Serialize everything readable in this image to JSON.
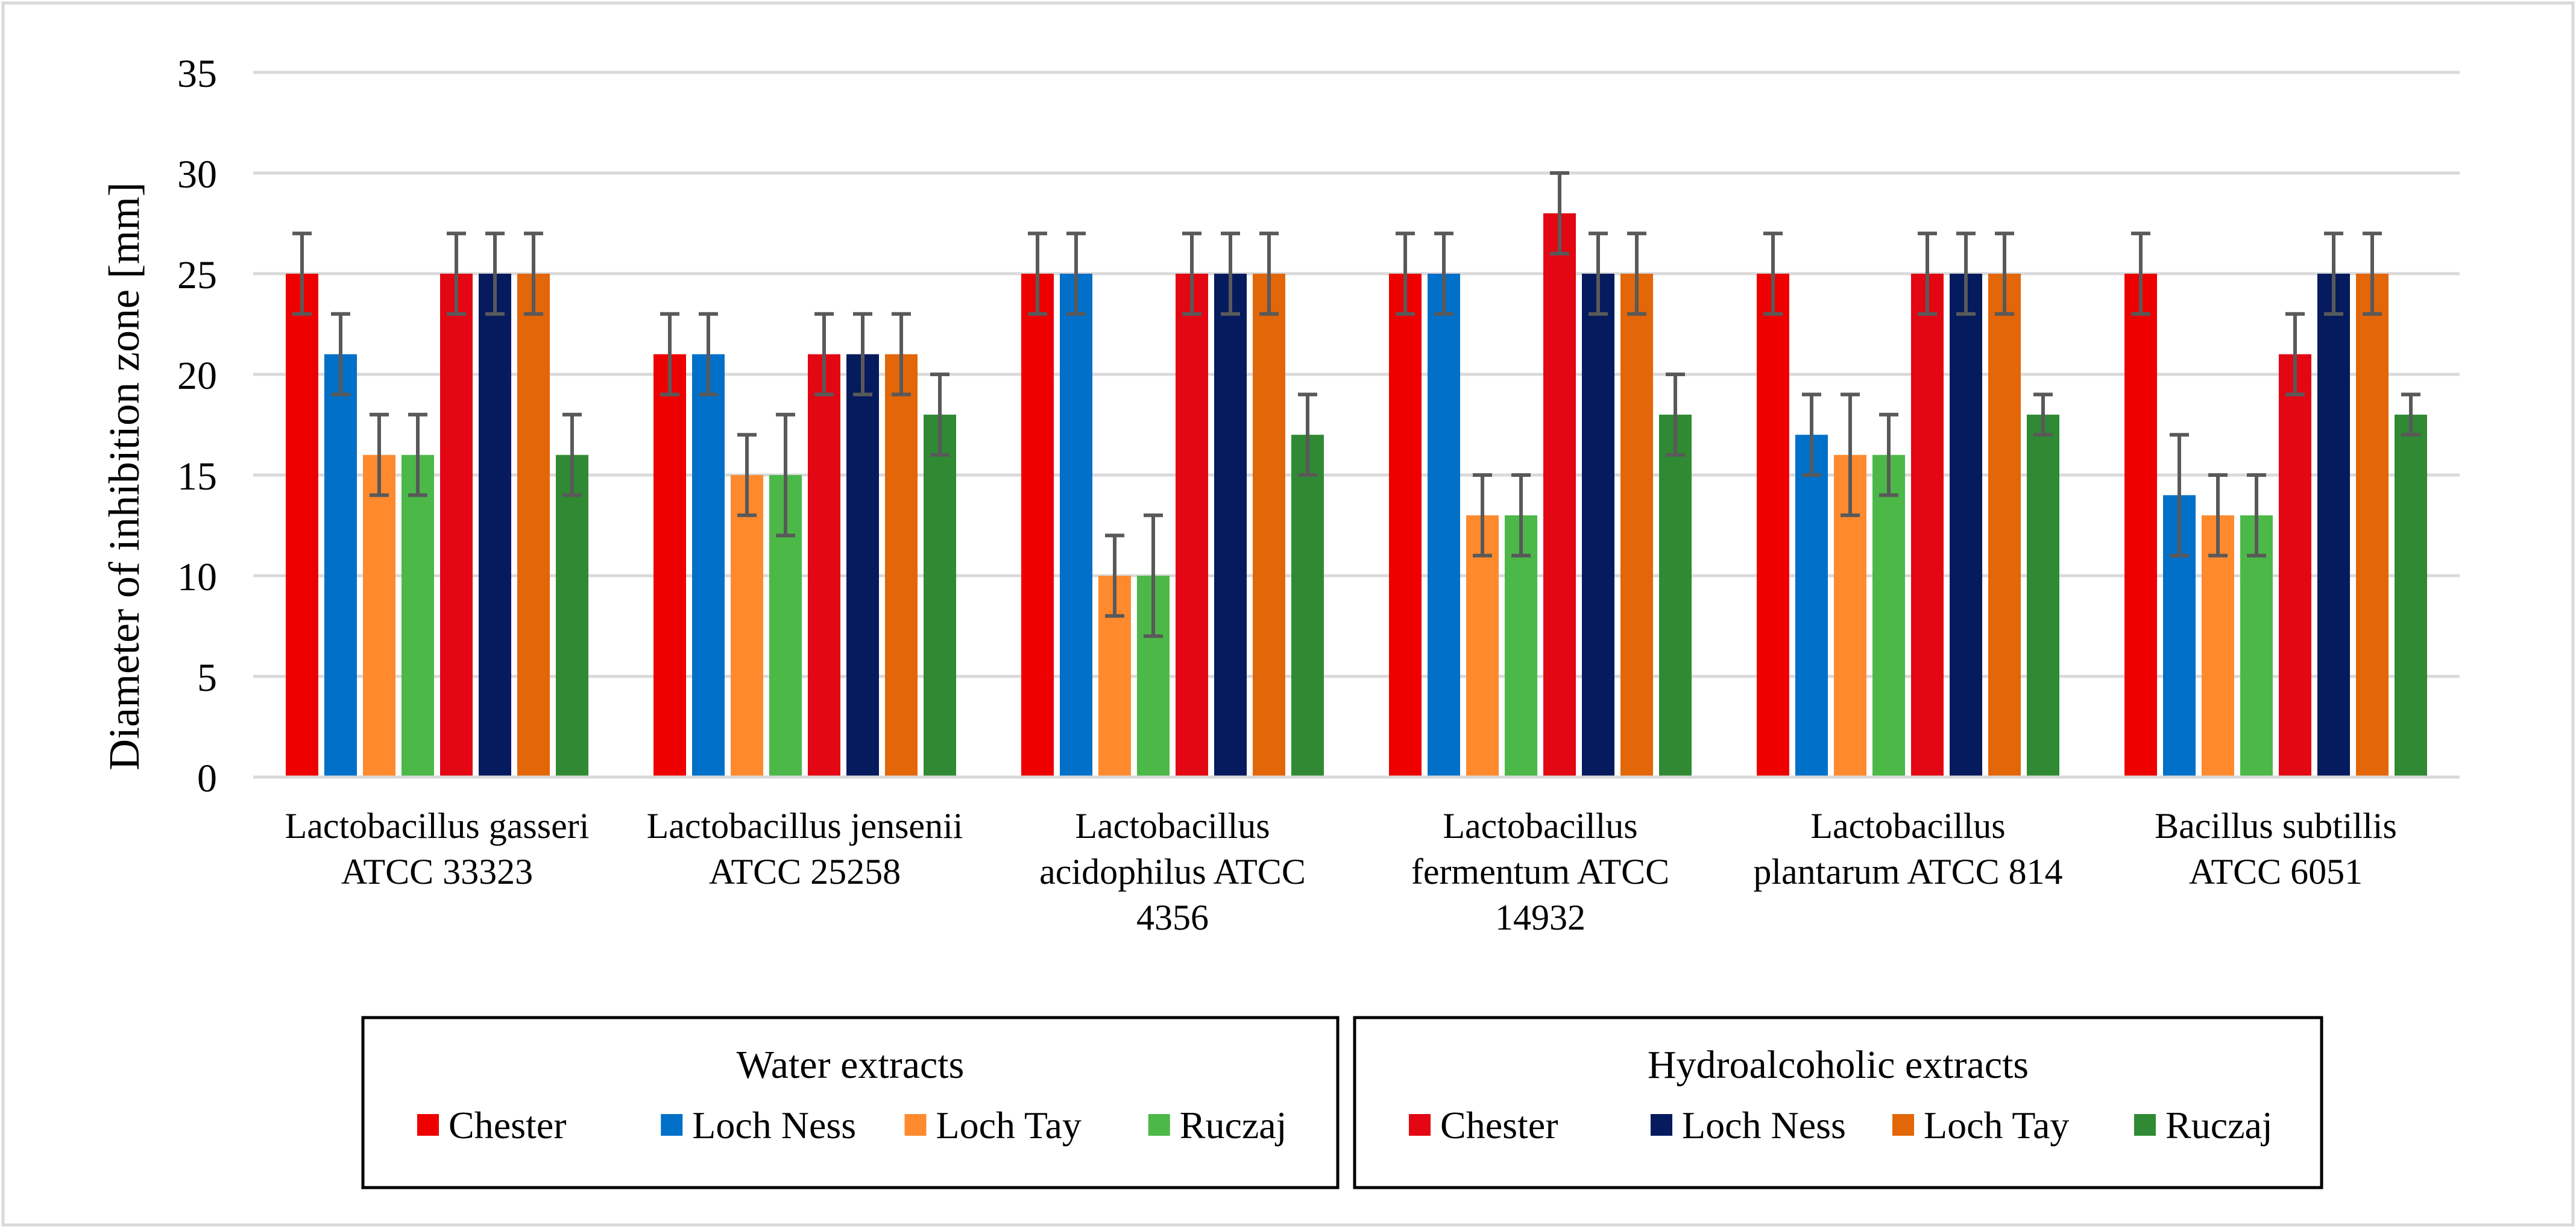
{
  "chart_data": {
    "type": "bar",
    "title": "",
    "xlabel": "",
    "ylabel": "Diameter of inhibition zone [mm]",
    "ylim": [
      0,
      35
    ],
    "yticks": [
      0,
      5,
      10,
      15,
      20,
      25,
      30,
      35
    ],
    "grid": true,
    "categories": [
      [
        "Lactobacillus gasseri",
        "ATCC 33323"
      ],
      [
        "Lactobacillus jensenii",
        "ATCC 25258"
      ],
      [
        "Lactobacillus",
        "acidophilus ATCC",
        "4356"
      ],
      [
        "Lactobacillus",
        "fermentum ATCC",
        "14932"
      ],
      [
        "Lactobacillus",
        "plantarum ATCC 814"
      ],
      [
        "Bacillus subtillis",
        "ATCC 6051"
      ]
    ],
    "groups": [
      {
        "name": "Water extracts",
        "series": [
          {
            "name": "Chester",
            "color": "#ee0000",
            "values": [
              25,
              21,
              25,
              25,
              25,
              25
            ],
            "errors": [
              2,
              2,
              2,
              2,
              2,
              2
            ]
          },
          {
            "name": "Loch Ness",
            "color": "#0070c8",
            "values": [
              21,
              21,
              25,
              25,
              17,
              14
            ],
            "errors": [
              2,
              2,
              2,
              2,
              2,
              3
            ]
          },
          {
            "name": "Loch Tay",
            "color": "#ff8a2e",
            "values": [
              16,
              15,
              10,
              13,
              16,
              13
            ],
            "errors": [
              2,
              2,
              2,
              2,
              3,
              2
            ]
          },
          {
            "name": "Ruczaj",
            "color": "#4cb848",
            "values": [
              16,
              15,
              10,
              13,
              16,
              13
            ],
            "errors": [
              2,
              3,
              3,
              2,
              2,
              2
            ]
          }
        ]
      },
      {
        "name": "Hydroalcoholic extracts",
        "series": [
          {
            "name": "Chester",
            "color": "#e30613",
            "values": [
              25,
              21,
              25,
              28,
              25,
              21
            ],
            "errors": [
              2,
              2,
              2,
              2,
              2,
              2
            ]
          },
          {
            "name": "Loch Ness",
            "color": "#061a5e",
            "values": [
              25,
              21,
              25,
              25,
              25,
              25
            ],
            "errors": [
              2,
              2,
              2,
              2,
              2,
              2
            ]
          },
          {
            "name": "Loch Tay",
            "color": "#e36608",
            "values": [
              25,
              21,
              25,
              25,
              25,
              25
            ],
            "errors": [
              2,
              2,
              2,
              2,
              2,
              2
            ]
          },
          {
            "name": "Ruczaj",
            "color": "#2f8a33",
            "values": [
              16,
              18,
              17,
              18,
              18,
              18
            ],
            "errors": [
              2,
              2,
              2,
              2,
              1,
              1
            ]
          }
        ]
      }
    ]
  }
}
